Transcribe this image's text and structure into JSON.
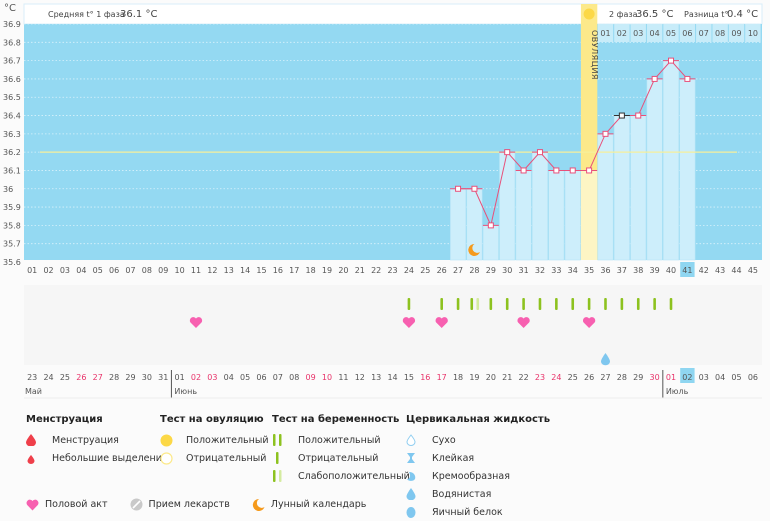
{
  "header": {
    "unit": "°C",
    "phase1_label": "Средняя t° 1 фаза",
    "phase1_value": "36.1 °C",
    "phase2_label": "2 фаза",
    "phase2_value": "36.5 °C",
    "diff_label": "Разница t°",
    "diff_value": "0.4 °C",
    "ovulation_label": "ОВУЛЯЦИЯ"
  },
  "colors": {
    "chart_bg": "#94d9f2",
    "bar": "#cdeefb",
    "ovulation": "#fdf5c4",
    "ovulation_header": "#fce98a",
    "line": "#e8507a",
    "coverline": "#f6ef9b",
    "heart": "#f760b0",
    "pregnancy": "#8dc21f",
    "pregnancy_weak": "#d4eba0",
    "drop": "#7fc7ef",
    "today": "#8fd6f1"
  },
  "chart_data": {
    "type": "line",
    "title": "",
    "xlabel": "",
    "ylabel": "°C",
    "ylim": [
      35.6,
      36.9
    ],
    "y_ticks": [
      "36.9",
      "36.8",
      "36.7",
      "36.6",
      "36.5",
      "36.4",
      "36.3",
      "36.2",
      "36.1",
      "36",
      "35.9",
      "35.8",
      "35.7",
      "35.6"
    ],
    "cycle_days": [
      "01",
      "02",
      "03",
      "04",
      "05",
      "06",
      "07",
      "08",
      "09",
      "10",
      "11",
      "12",
      "13",
      "14",
      "15",
      "16",
      "17",
      "18",
      "19",
      "20",
      "21",
      "22",
      "23",
      "24",
      "25",
      "26",
      "27",
      "28",
      "29",
      "30",
      "31",
      "32",
      "33",
      "34",
      "35",
      "36",
      "37",
      "38",
      "39",
      "40",
      "41",
      "42",
      "43",
      "44",
      "45"
    ],
    "current_cycle_day": "41",
    "ovulation_day": 35,
    "coverline": 36.2,
    "temperatures": {
      "x": [
        27,
        28,
        29,
        30,
        31,
        32,
        33,
        34,
        35,
        36,
        37,
        38,
        39,
        40,
        41
      ],
      "y": [
        36.0,
        36.0,
        35.8,
        36.2,
        36.1,
        36.2,
        36.1,
        36.1,
        36.1,
        36.3,
        36.4,
        36.4,
        36.6,
        36.7,
        36.6
      ]
    },
    "highlighted_point_day": 37,
    "next_cycle_days": [
      "01",
      "02",
      "03",
      "04",
      "05",
      "06",
      "07",
      "08",
      "09",
      "10"
    ],
    "moon_day": 28,
    "hearts_days": [
      11,
      24,
      26,
      31,
      35
    ],
    "pregnancy_negative_days": [
      24,
      26,
      27,
      29,
      30,
      31,
      32,
      33,
      34,
      35,
      36,
      37,
      38,
      39,
      40
    ],
    "pregnancy_weak_days": [
      28
    ],
    "cervical_watery_days": [
      36
    ],
    "calendar_dates": [
      "23",
      "24",
      "25",
      "26",
      "27",
      "28",
      "29",
      "30",
      "31",
      "01",
      "02",
      "03",
      "04",
      "05",
      "06",
      "07",
      "08",
      "09",
      "10",
      "11",
      "12",
      "13",
      "14",
      "15",
      "16",
      "17",
      "18",
      "19",
      "20",
      "21",
      "22",
      "23",
      "24",
      "25",
      "26",
      "27",
      "28",
      "29",
      "30",
      "01",
      "02",
      "03",
      "04",
      "05",
      "06"
    ],
    "calendar_red_indices": [
      3,
      4,
      10,
      11,
      17,
      18,
      24,
      25,
      31,
      32,
      38,
      39
    ],
    "calendar_today_index": 40,
    "months": [
      {
        "label": "Май",
        "start_index": 0
      },
      {
        "label": "Июнь",
        "start_index": 9
      },
      {
        "label": "Июль",
        "start_index": 39
      }
    ]
  },
  "legend": {
    "menstruation": {
      "title": "Менструация",
      "items": [
        "Менструация",
        "Небольшие выделения"
      ]
    },
    "ovulation_test": {
      "title": "Тест на овуляцию",
      "items": [
        "Положительный",
        "Отрицательный"
      ]
    },
    "pregnancy_test": {
      "title": "Тест на беременность",
      "items": [
        "Положительный",
        "Отрицательный",
        "Слабоположительный"
      ]
    },
    "cervical": {
      "title": "Цервикальная жидкость",
      "items": [
        "Сухо",
        "Клейкая",
        "Кремообразная",
        "Водянистая",
        "Яичный белок"
      ]
    },
    "other": [
      "Половой акт",
      "Прием лекарств",
      "Лунный календарь"
    ]
  }
}
